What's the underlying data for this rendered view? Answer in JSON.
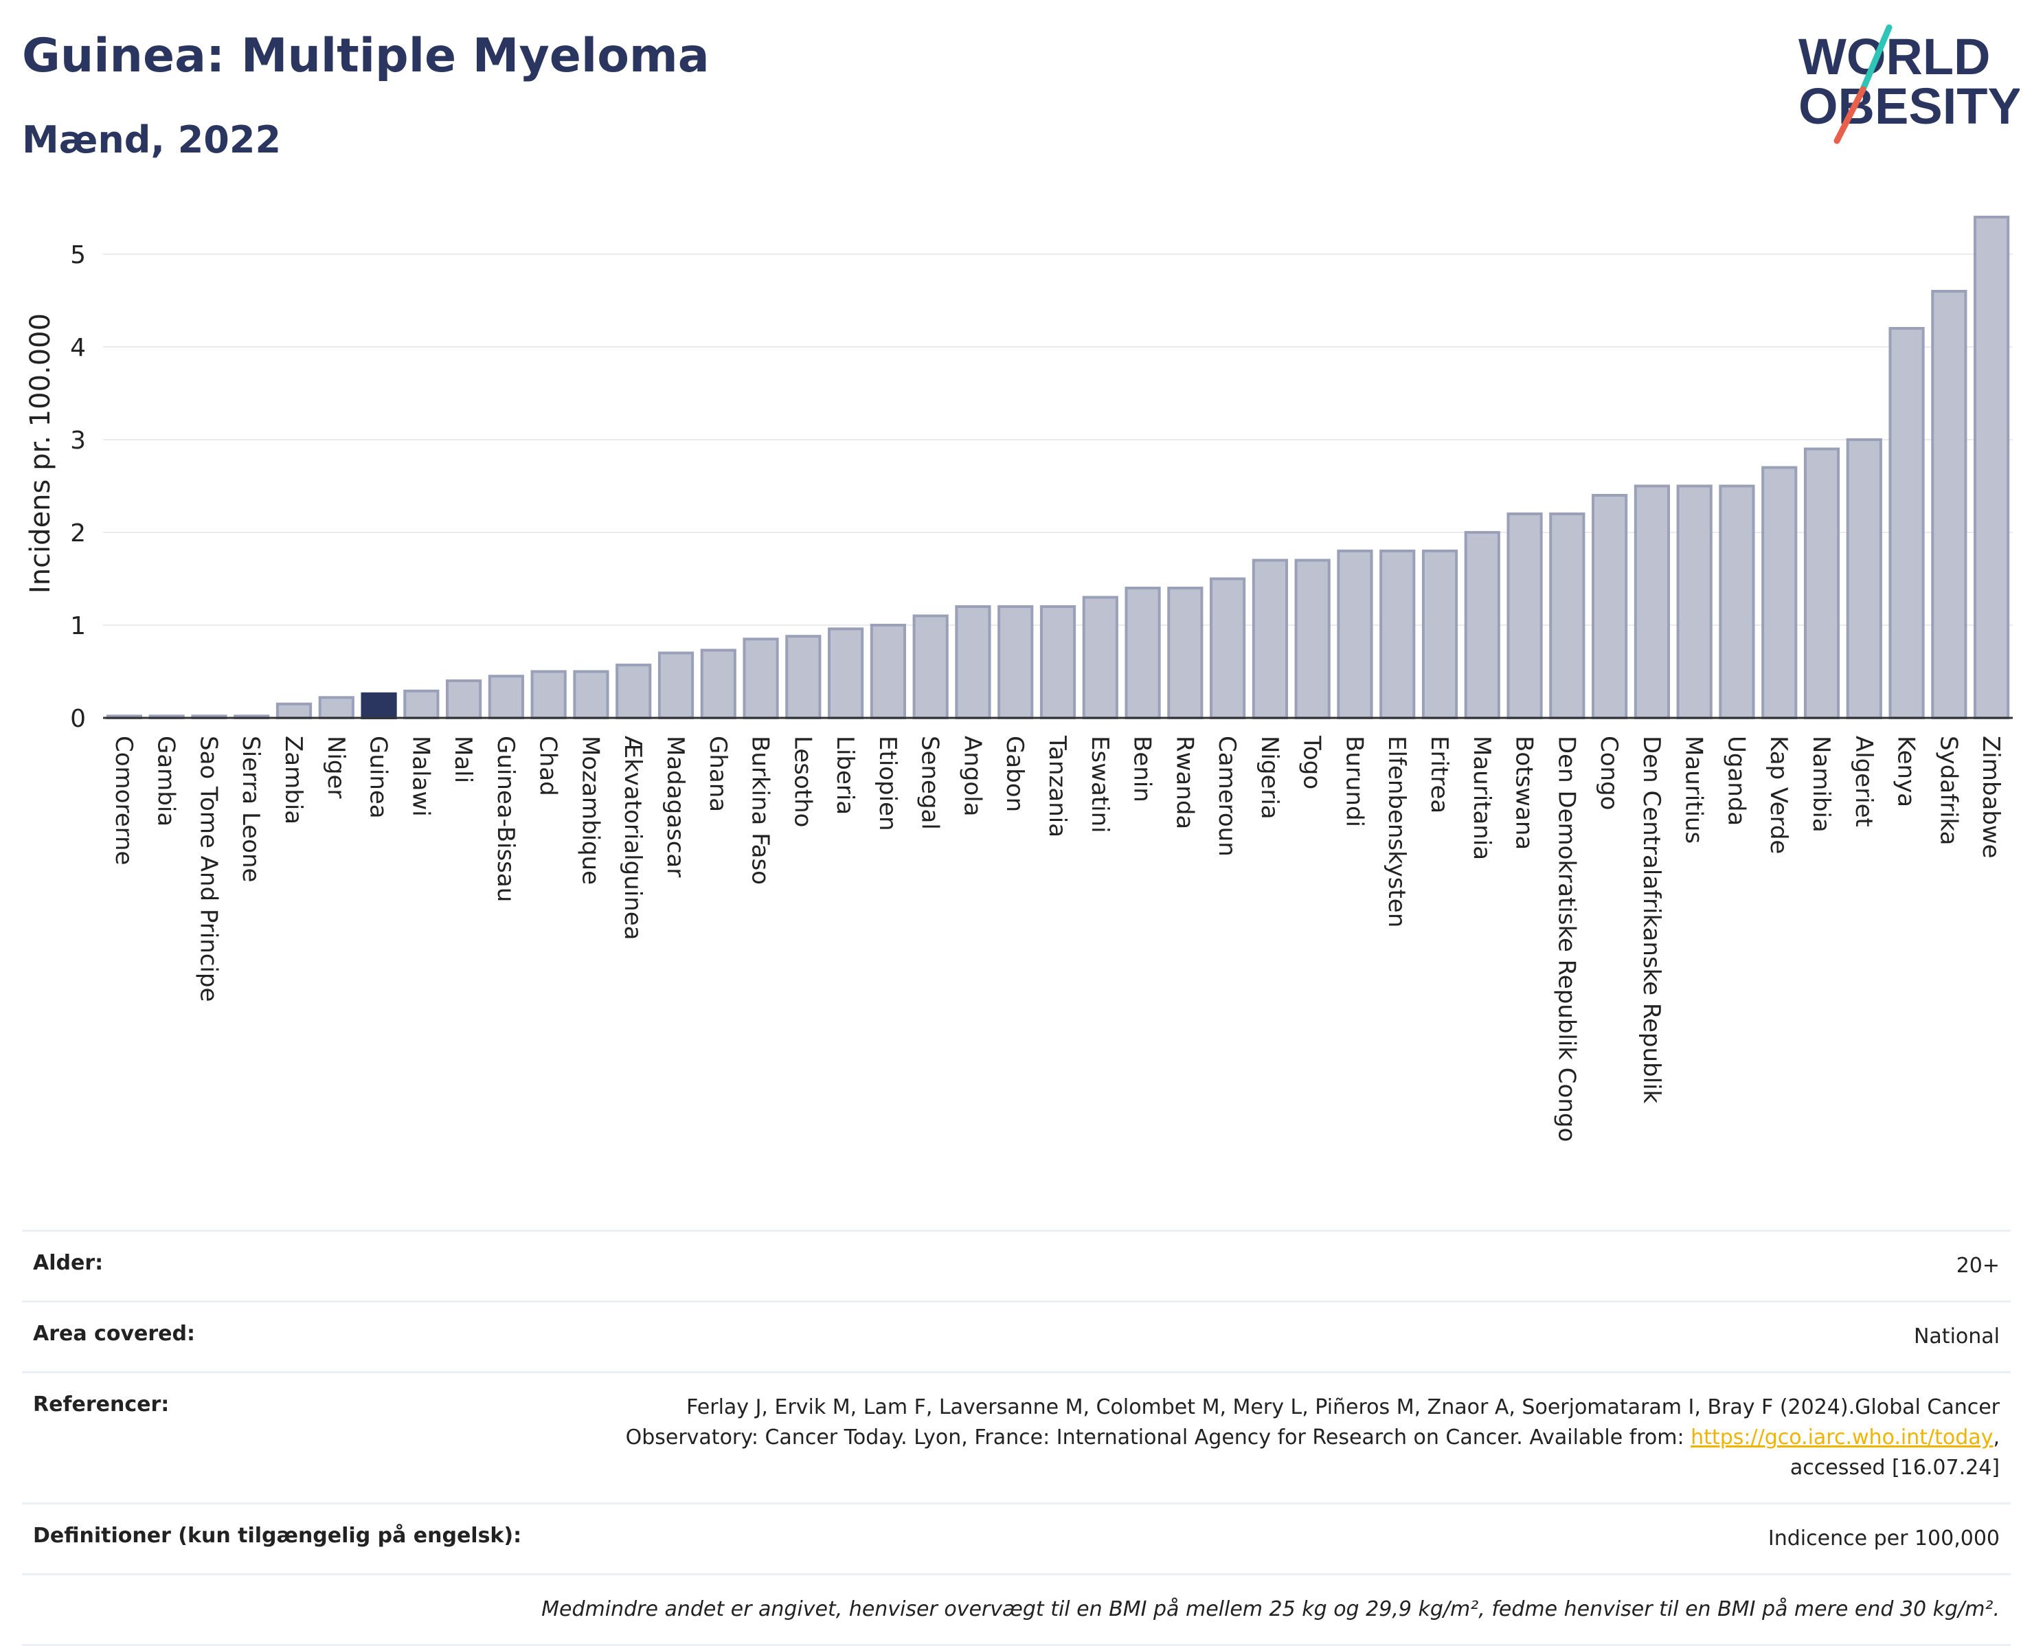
{
  "header": {
    "title": "Guinea: Multiple Myeloma",
    "subtitle": "Mænd, 2022",
    "logo_line1": "WORLD",
    "logo_line2": "OBESITY"
  },
  "colors": {
    "bar": "#bec2d0",
    "bar_stroke": "#9aa0b8",
    "highlight": "#2b3660",
    "title": "#2b3660"
  },
  "chart_data": {
    "type": "bar",
    "ylabel": "Incidens pr. 100.000",
    "ylim": [
      0,
      5.5
    ],
    "yticks": [
      0,
      1,
      2,
      3,
      4,
      5
    ],
    "grid": true,
    "highlight": "Guinea",
    "categories": [
      "Comorerne",
      "Gambia",
      "Sao Tome And Principe",
      "Sierra Leone",
      "Zambia",
      "Niger",
      "Guinea",
      "Malawi",
      "Mali",
      "Guinea-Bissau",
      "Chad",
      "Mozambique",
      "Ækvatorialguinea",
      "Madagascar",
      "Ghana",
      "Burkina Faso",
      "Lesotho",
      "Liberia",
      "Etiopien",
      "Senegal",
      "Angola",
      "Gabon",
      "Tanzania",
      "Eswatini",
      "Benin",
      "Rwanda",
      "Cameroun",
      "Nigeria",
      "Togo",
      "Burundi",
      "Elfenbenskysten",
      "Eritrea",
      "Mauritania",
      "Botswana",
      "Den Demokratiske Republik Congo",
      "Congo",
      "Den Centralafrikanske Republik",
      "Mauritius",
      "Uganda",
      "Kap Verde",
      "Namibia",
      "Algeriet",
      "Kenya",
      "Sydafrika",
      "Zimbabwe"
    ],
    "values": [
      0.02,
      0.02,
      0.02,
      0.02,
      0.15,
      0.22,
      0.26,
      0.29,
      0.4,
      0.45,
      0.5,
      0.5,
      0.57,
      0.7,
      0.73,
      0.85,
      0.88,
      0.96,
      1.0,
      1.1,
      1.2,
      1.2,
      1.2,
      1.3,
      1.4,
      1.4,
      1.5,
      1.7,
      1.7,
      1.8,
      1.8,
      1.8,
      2.0,
      2.2,
      2.2,
      2.4,
      2.5,
      2.5,
      2.5,
      2.7,
      2.9,
      3.0,
      4.2,
      4.6,
      5.4
    ]
  },
  "meta": {
    "age_label": "Alder:",
    "age_value": "20+",
    "area_label": "Area covered:",
    "area_value": "National",
    "ref_label": "Referencer:",
    "ref_text1": "Ferlay J, Ervik M, Lam F, Laversanne M, Colombet M, Mery L, Piñeros M, Znaor A, Soerjomataram I, Bray F (2024).Global Cancer",
    "ref_text2": "Observatory: Cancer Today. Lyon, France: International Agency for Research on Cancer. Available from:",
    "ref_link": "https://gco.iarc.who.int/today",
    "ref_text3": "accessed [16.07.24]",
    "def_label": "Definitioner (kun tilgængelig på engelsk):",
    "def_value": "Indicence per 100,000",
    "note": "Medmindre andet er angivet, henviser overvægt til en BMI på mellem 25 kg og 29,9 kg/m², fedme henviser til en BMI på mere end 30 kg/m²."
  }
}
